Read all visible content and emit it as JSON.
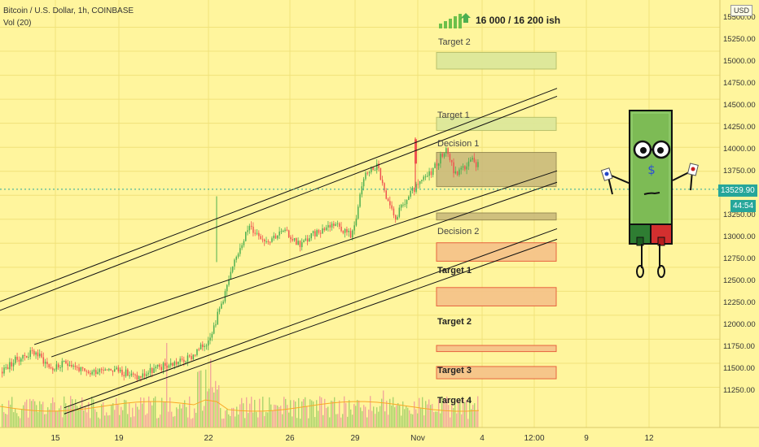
{
  "legend": {
    "symbol_line": "Bitcoin / U.S. Dollar, 1h, COINBASE",
    "volume_line": "Vol (20)"
  },
  "currency_badge": "USD",
  "target_note": "16 000 / 16 200 ish",
  "zones": {
    "upper": {
      "target2": "Target 2",
      "target1": "Target 1",
      "decision1": "Decision 1",
      "decision2": "Decision 2"
    },
    "lower": {
      "target1": "Target 1",
      "target2": "Target 2",
      "target3": "Target 3",
      "target4": "Target 4"
    }
  },
  "price_badge": "13529.90",
  "countdown_badge": "44:54",
  "colors": {
    "background": "#fff59d",
    "up_candle": "#4caf50",
    "down_candle": "#ef5350",
    "upper_zone": "#dde89a",
    "decision_zone": "#c7b779",
    "lower_zone": "#f6c489",
    "lower_zone_border": "#e65c3a",
    "price_badge": "#26a69a"
  },
  "chart_data": {
    "type": "candlestick",
    "series_name": "Bitcoin / U.S. Dollar",
    "timeframe": "1h",
    "exchange": "COINBASE",
    "y_range": [
      11000,
      15650
    ],
    "y_ticks": [
      15500,
      15250,
      15000,
      14750,
      14500,
      14250,
      14000,
      13750,
      13500,
      13250,
      13000,
      12750,
      12500,
      12250,
      12000,
      11750,
      11500,
      11250
    ],
    "y_tick_labels": [
      "15500.00",
      "15250.00",
      "15000.00",
      "14750.00",
      "14500.00",
      "14250.00",
      "14000.00",
      "13750.00",
      "13500.00",
      "13250.00",
      "13000.00",
      "12750.00",
      "12500.00",
      "12250.00",
      "12000.00",
      "11750.00",
      "11500.00",
      "11250.00"
    ],
    "x_tick_labels": [
      "15",
      "19",
      "22",
      "26",
      "29",
      "Nov",
      "4",
      "12:00",
      "9",
      "12"
    ],
    "price_path": [
      [
        0,
        11450
      ],
      [
        4,
        11600
      ],
      [
        8,
        11680
      ],
      [
        12,
        11480
      ],
      [
        16,
        11560
      ],
      [
        20,
        11420
      ],
      [
        24,
        11500
      ],
      [
        28,
        11460
      ],
      [
        32,
        11380
      ],
      [
        36,
        11480
      ],
      [
        40,
        11540
      ],
      [
        44,
        11600
      ],
      [
        48,
        11780
      ],
      [
        50,
        12000
      ],
      [
        52,
        12300
      ],
      [
        54,
        12600
      ],
      [
        56,
        12900
      ],
      [
        58,
        13100
      ],
      [
        62,
        12950
      ],
      [
        66,
        13050
      ],
      [
        70,
        12900
      ],
      [
        74,
        13050
      ],
      [
        78,
        13150
      ],
      [
        82,
        13000
      ],
      [
        85,
        13700
      ],
      [
        88,
        13800
      ],
      [
        90,
        13400
      ],
      [
        92,
        13200
      ],
      [
        96,
        13500
      ],
      [
        100,
        13700
      ],
      [
        104,
        14000
      ],
      [
        106,
        13700
      ],
      [
        110,
        13850
      ],
      [
        114,
        13750
      ],
      [
        116,
        13550
      ],
      [
        118,
        13400
      ],
      [
        120,
        13350
      ],
      [
        121,
        13550
      ]
    ],
    "volume_range": [
      0,
      18000
    ],
    "last_price": 13529.9,
    "zones": [
      {
        "label": "Target 2",
        "low": 14900,
        "high": 15090
      },
      {
        "label": "Target 1",
        "low": 14200,
        "high": 14350
      },
      {
        "label": "Decision 1",
        "low": 13560,
        "high": 13950
      },
      {
        "label": "Decision 2",
        "low": 13180,
        "high": 13260
      },
      {
        "label": "Target 1",
        "low": 12710,
        "high": 12920
      },
      {
        "label": "Target 2",
        "low": 12200,
        "high": 12410
      },
      {
        "label": "Target 3",
        "low": 11680,
        "high": 11750
      },
      {
        "label": "Target 4",
        "low": 11370,
        "high": 11510
      }
    ],
    "trendlines": [
      {
        "p1": [
          0,
          12250
        ],
        "p2": [
          130,
          14680
        ]
      },
      {
        "p1": [
          0,
          12150
        ],
        "p2": [
          130,
          14590
        ]
      },
      {
        "p1": [
          8,
          11760
        ],
        "p2": [
          130,
          13740
        ]
      },
      {
        "p1": [
          12,
          11620
        ],
        "p2": [
          130,
          13610
        ]
      },
      {
        "p1": [
          15,
          11040
        ],
        "p2": [
          130,
          13080
        ]
      },
      {
        "p1": [
          15,
          10970
        ],
        "p2": [
          130,
          12960
        ]
      }
    ]
  }
}
